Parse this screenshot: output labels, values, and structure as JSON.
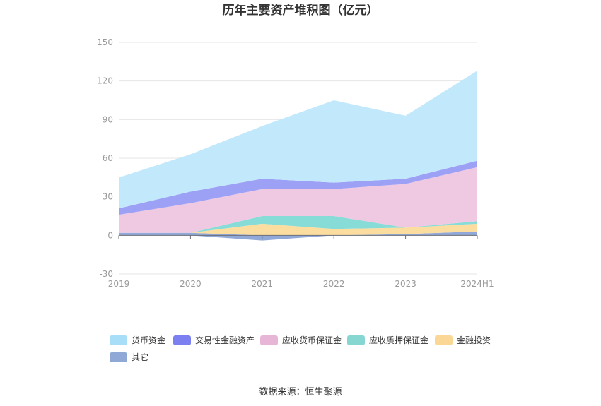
{
  "chart_data": {
    "type": "area",
    "stacked": true,
    "title": "历年主要资产堆积图（亿元）",
    "source": "数据来源：恒生聚源",
    "x": [
      "2019",
      "2020",
      "2021",
      "2022",
      "2023",
      "2024H1"
    ],
    "ylim": [
      -30,
      150
    ],
    "yticks": [
      150,
      120,
      90,
      60,
      30,
      0,
      -30
    ],
    "grid": true,
    "legend_position": "bottom",
    "series": [
      {
        "name": "其它",
        "color": "#91a9d9",
        "values": [
          2,
          2,
          -4,
          0,
          1,
          3
        ]
      },
      {
        "name": "金融投资",
        "color": "#fcdda0",
        "values": [
          0,
          0,
          9,
          5,
          5,
          6
        ]
      },
      {
        "name": "应收质押保证金",
        "color": "#88dcd8",
        "values": [
          0,
          0,
          6,
          10,
          0,
          2
        ]
      },
      {
        "name": "应收货币保证金",
        "color": "#efc8e2",
        "values": [
          14,
          23,
          21,
          21,
          34,
          42
        ]
      },
      {
        "name": "交易性金融资产",
        "color": "#9ca1f6",
        "values": [
          5,
          9,
          8,
          5,
          4,
          5
        ]
      },
      {
        "name": "货币资金",
        "color": "#c2e8fb",
        "values": [
          24,
          29,
          41,
          64,
          49,
          70
        ]
      }
    ],
    "legend": [
      {
        "name": "货币资金",
        "color": "#a8def8"
      },
      {
        "name": "交易性金融资产",
        "color": "#7b7ff0"
      },
      {
        "name": "应收货币保证金",
        "color": "#e7b5d6"
      },
      {
        "name": "应收质押保证金",
        "color": "#86d6d2"
      },
      {
        "name": "金融投资",
        "color": "#fbd796"
      },
      {
        "name": "其它",
        "color": "#8fa8d6"
      }
    ]
  }
}
